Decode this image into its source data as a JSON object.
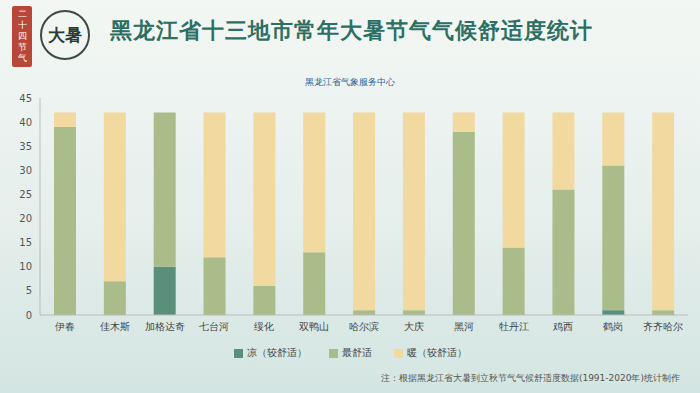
{
  "chart_data": {
    "type": "bar",
    "title": "黑龙江省十三地市常年大暑节气气候舒适度统计",
    "subtitle": "黑龙江省气象服务中心",
    "logo_texts": [
      "二十四节气",
      "大暑"
    ],
    "note": "注：根据黑龙江省大暑到立秋节气气候舒适度数据(1991-2020年)统计制作",
    "categories": [
      "伊春",
      "佳木斯",
      "加格达奇",
      "七台河",
      "绥化",
      "双鸭山",
      "哈尔滨",
      "大庆",
      "黑河",
      "牡丹江",
      "鸡西",
      "鹤岗",
      "齐齐哈尔"
    ],
    "series": [
      {
        "name": "凉（较舒适）",
        "color": "#5a8f7b",
        "values": [
          0,
          0,
          10,
          0,
          0,
          0,
          0,
          0,
          0,
          0,
          0,
          1,
          0
        ]
      },
      {
        "name": "最舒适",
        "color": "#a9bc8a",
        "values": [
          39,
          7,
          32,
          12,
          6,
          13,
          1,
          1,
          38,
          14,
          26,
          30,
          1
        ]
      },
      {
        "name": "暖（较舒适）",
        "color": "#f2d9a0",
        "values": [
          3,
          35,
          0,
          30,
          36,
          29,
          41,
          41,
          4,
          28,
          16,
          11,
          41
        ]
      }
    ],
    "stacked": true,
    "ylim": [
      0,
      45
    ],
    "yticks": [
      0,
      5,
      10,
      15,
      20,
      25,
      30,
      35,
      40,
      45
    ],
    "grid": false,
    "legend": "bottom"
  }
}
